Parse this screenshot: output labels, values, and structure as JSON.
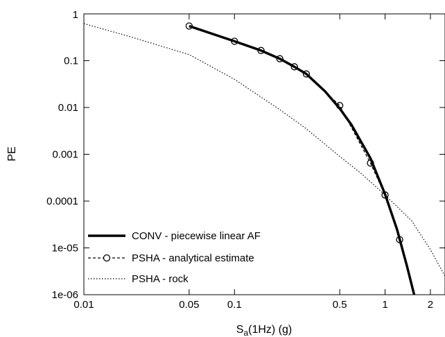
{
  "chart_data": {
    "type": "line",
    "title": "",
    "xlabel": "S_a(1Hz) (g)",
    "xlabel_parts": {
      "main": "S",
      "sub": "a",
      "rest": "(1Hz) (g)"
    },
    "ylabel": "PE",
    "x_scale": "log",
    "y_scale": "log",
    "xlim": [
      0.01,
      2.5
    ],
    "ylim": [
      1e-06,
      1
    ],
    "x_ticks": [
      {
        "value": 0.01,
        "label": "0.01"
      },
      {
        "value": 0.05,
        "label": "0.05"
      },
      {
        "value": 0.1,
        "label": "0.1"
      },
      {
        "value": 0.5,
        "label": "0.5"
      },
      {
        "value": 1,
        "label": "1"
      },
      {
        "value": 2,
        "label": "2"
      }
    ],
    "y_ticks": [
      {
        "value": 1,
        "label": "1"
      },
      {
        "value": 0.1,
        "label": "0.1"
      },
      {
        "value": 0.01,
        "label": "0.01"
      },
      {
        "value": 0.001,
        "label": "0.001"
      },
      {
        "value": 0.0001,
        "label": "0.0001"
      },
      {
        "value": 1e-05,
        "label": "1e-05"
      },
      {
        "value": 1e-06,
        "label": "1e-06"
      }
    ],
    "grid": false,
    "legend_position": "bottom-left",
    "series": [
      {
        "name": "CONV - piecewise linear AF",
        "style": "solid-thick",
        "color": "#000000",
        "x": [
          0.05,
          0.1,
          0.15,
          0.2,
          0.25,
          0.3,
          0.4,
          0.5,
          0.6,
          0.8,
          1.0,
          1.2,
          1.4,
          1.56
        ],
        "y": [
          0.55,
          0.26,
          0.165,
          0.11,
          0.074,
          0.052,
          0.022,
          0.0095,
          0.0042,
          0.00082,
          0.00014,
          2.5e-05,
          4e-06,
          1e-06
        ]
      },
      {
        "name": "PSHA - analytical estimate",
        "style": "dashed-circles",
        "color": "#000000",
        "x": [
          0.05,
          0.1,
          0.15,
          0.2,
          0.25,
          0.3,
          0.5,
          0.8,
          1.0,
          1.25
        ],
        "y": [
          0.55,
          0.26,
          0.165,
          0.11,
          0.074,
          0.052,
          0.011,
          0.00065,
          0.000135,
          1.5e-05
        ]
      },
      {
        "name": "PSHA - rock",
        "style": "dotted",
        "color": "#000000",
        "x": [
          0.01,
          0.02,
          0.05,
          0.1,
          0.2,
          0.3,
          0.5,
          0.7,
          1.0,
          1.5,
          2.0,
          2.5
        ],
        "y": [
          0.62,
          0.33,
          0.135,
          0.04,
          0.009,
          0.0035,
          0.0009,
          0.00038,
          0.000135,
          3.8e-05,
          9.2e-06,
          2.5e-06
        ]
      }
    ]
  }
}
